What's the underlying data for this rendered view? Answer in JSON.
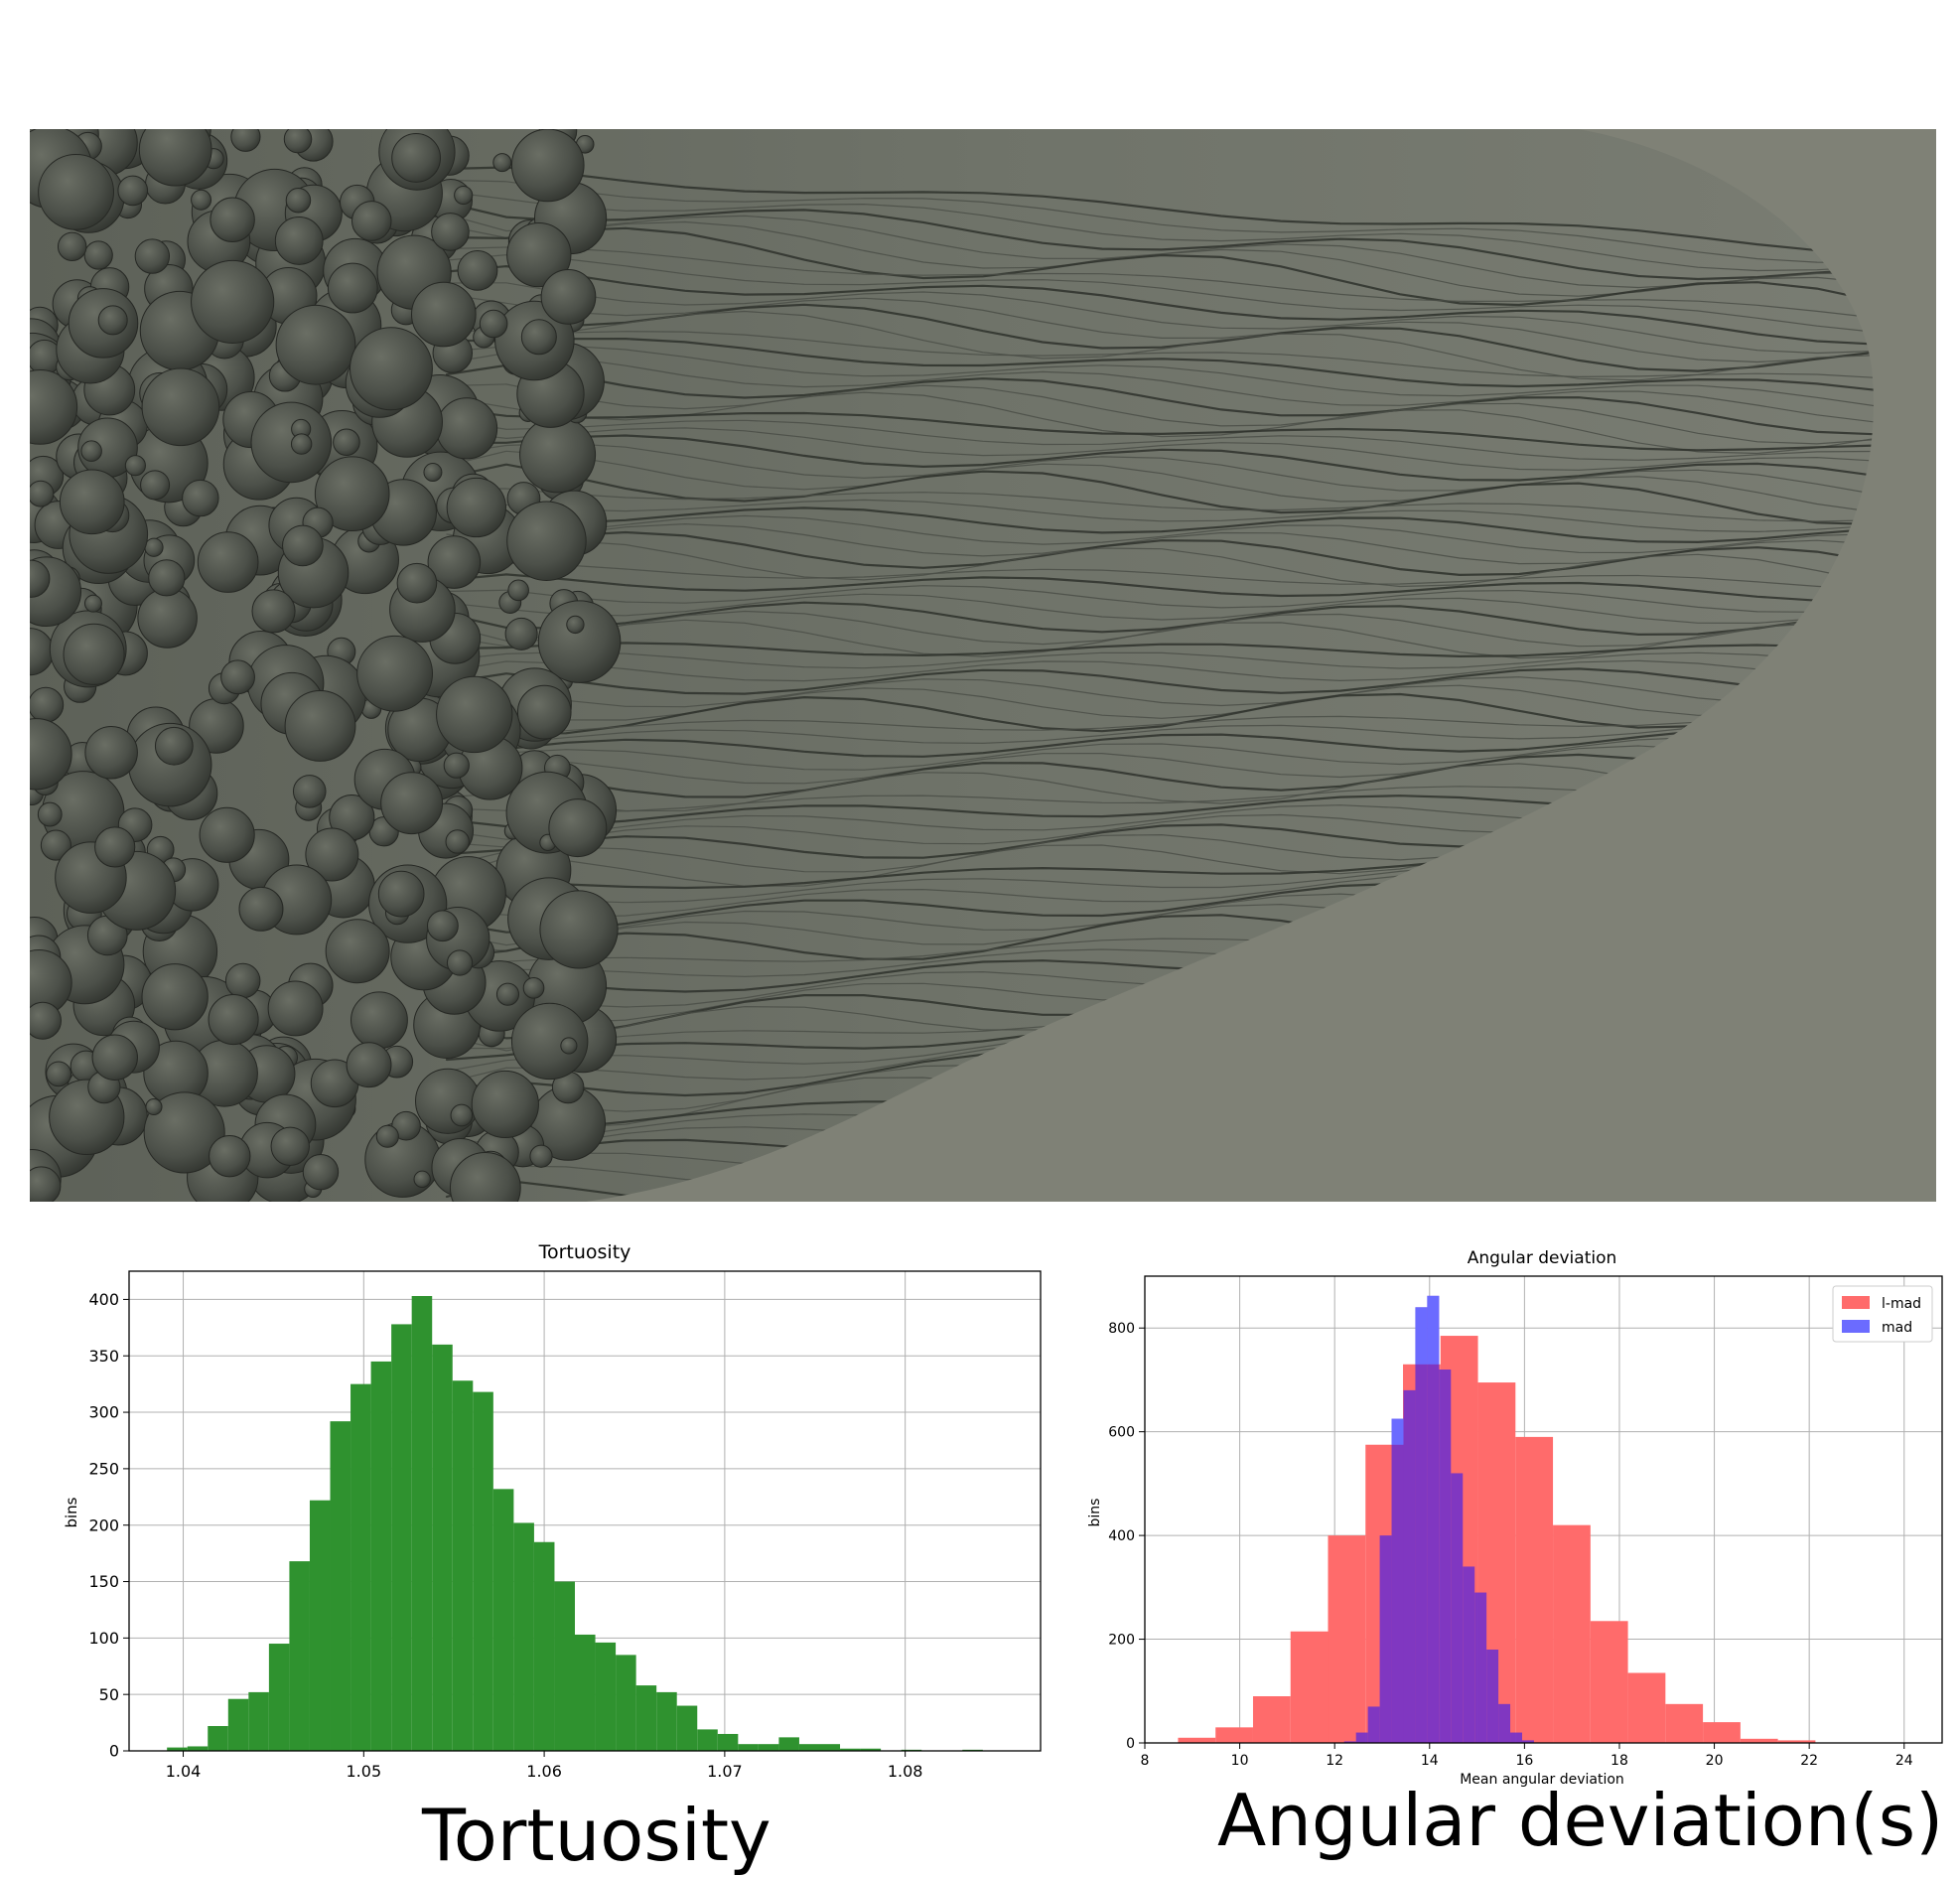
{
  "chart_data": [
    {
      "type": "bar",
      "title": "Tortuosity",
      "xlabel": "",
      "ylabel": "bins",
      "xlim": [
        1.037,
        1.0875
      ],
      "ylim": [
        0,
        425
      ],
      "grid": true,
      "xticks": [
        "1.04",
        "1.05",
        "1.06",
        "1.07",
        "1.08"
      ],
      "yticks": [
        "0",
        "50",
        "100",
        "150",
        "200",
        "250",
        "300",
        "350",
        "400"
      ],
      "bin_width": 0.00113,
      "bin_start": 1.0391,
      "color": "#2f922f",
      "values": [
        3,
        4,
        22,
        46,
        52,
        95,
        168,
        222,
        292,
        325,
        345,
        378,
        403,
        360,
        328,
        318,
        232,
        202,
        185,
        150,
        103,
        96,
        85,
        58,
        52,
        40,
        19,
        15,
        6,
        6,
        12,
        6,
        6,
        2,
        2,
        0,
        1,
        0,
        0,
        1
      ]
    },
    {
      "type": "bar",
      "title": "Angular deviation",
      "xlabel": "Mean angular deviation",
      "ylabel": "bins",
      "xlim": [
        8,
        24.8
      ],
      "ylim": [
        0,
        900
      ],
      "grid": true,
      "legend_position": "top-right",
      "xticks": [
        "8",
        "10",
        "12",
        "14",
        "16",
        "18",
        "20",
        "22",
        "24"
      ],
      "yticks": [
        "0",
        "200",
        "400",
        "600",
        "800"
      ],
      "series": [
        {
          "name": "l-mad",
          "color": "#ff6b6b",
          "bin_start": 8.7,
          "bin_width": 0.79,
          "values": [
            10,
            30,
            90,
            215,
            400,
            575,
            730,
            785,
            695,
            590,
            420,
            235,
            135,
            75,
            40,
            8,
            5,
            0,
            0,
            0
          ]
        },
        {
          "name": "mad",
          "color": "#6b6bff",
          "bin_start": 12.2,
          "bin_width": 0.25,
          "values": [
            3,
            20,
            70,
            400,
            625,
            680,
            840,
            862,
            720,
            520,
            340,
            290,
            180,
            75,
            20,
            5
          ]
        }
      ]
    }
  ],
  "captions": {
    "left": "Tortuosity",
    "right": "Angular deviation(s)"
  }
}
